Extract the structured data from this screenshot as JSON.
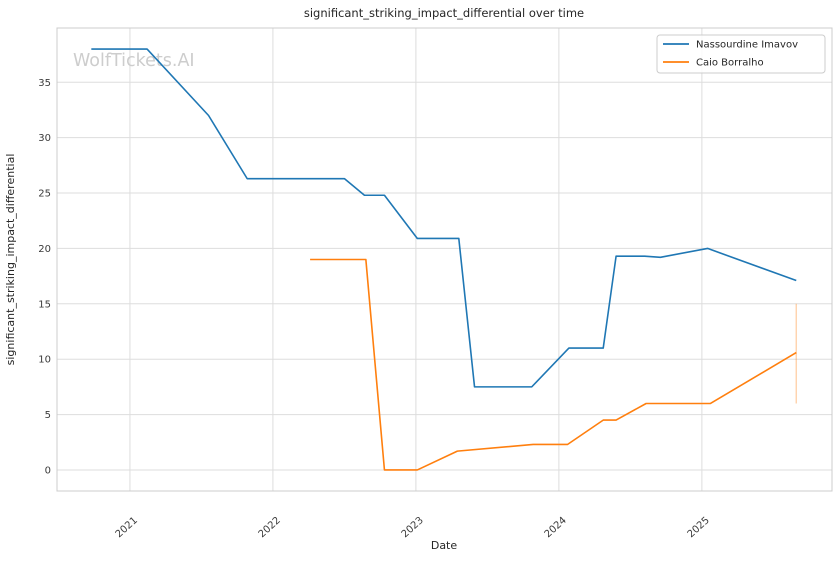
{
  "watermark": "WolfTickets.AI",
  "chart_data": {
    "type": "line",
    "title": "significant_striking_impact_differential over time",
    "xlabel": "Date",
    "ylabel": "significant_striking_impact_differential",
    "xlim": [
      2020.49,
      2025.91
    ],
    "ylim": [
      -1.9,
      39.9
    ],
    "x_ticks": [
      2021,
      2022,
      2023,
      2024,
      2025
    ],
    "x_tick_labels": [
      "2021",
      "2022",
      "2023",
      "2024",
      "2025"
    ],
    "y_ticks": [
      0,
      5,
      10,
      15,
      20,
      25,
      30,
      35
    ],
    "y_tick_labels": [
      "0",
      "5",
      "10",
      "15",
      "20",
      "25",
      "30",
      "35"
    ],
    "grid": true,
    "legend_position": "upper right",
    "series": [
      {
        "name": "Nassourdine Imavov",
        "color": "#1f77b4",
        "x": [
          2020.73,
          2021.12,
          2021.55,
          2021.82,
          2022.5,
          2022.64,
          2022.78,
          2023.01,
          2023.3,
          2023.41,
          2023.81,
          2024.07,
          2024.31,
          2024.4,
          2024.6,
          2024.71,
          2025.04,
          2025.66
        ],
        "y": [
          38.0,
          38.0,
          32.0,
          26.3,
          26.3,
          24.8,
          24.8,
          20.9,
          20.9,
          7.5,
          7.5,
          11.0,
          11.0,
          19.3,
          19.3,
          19.2,
          20.0,
          17.1
        ]
      },
      {
        "name": "Caio Borralho",
        "color": "#ff7f0e",
        "x": [
          2022.26,
          2022.65,
          2022.78,
          2023.01,
          2023.29,
          2023.82,
          2024.06,
          2024.31,
          2024.4,
          2024.61,
          2025.06,
          2025.66
        ],
        "y": [
          19.0,
          19.0,
          0.0,
          0.0,
          1.7,
          2.3,
          2.3,
          4.5,
          4.5,
          6.0,
          6.0,
          10.6
        ],
        "errorbar": {
          "x": 2025.66,
          "y_low": 6.0,
          "y_high": 15.0
        }
      }
    ]
  }
}
